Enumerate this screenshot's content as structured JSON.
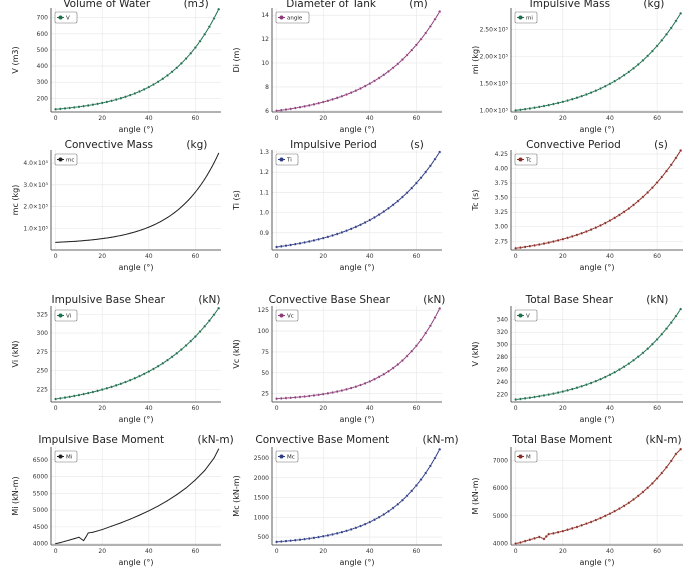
{
  "chart_data": [
    {
      "type": "line",
      "title": "Volume of Water          (m3)",
      "xlabel": "angle (°)",
      "ylabel": "V  (m3)",
      "xlim": [
        -2,
        71
      ],
      "ylim": [
        115,
        760
      ],
      "xticks": [
        0,
        20,
        40,
        60
      ],
      "yticks": [
        200,
        300,
        400,
        500,
        600,
        700
      ],
      "ytick_labels": [
        "200",
        "300",
        "400",
        "500",
        "600",
        "700"
      ],
      "color": "#1e6f4d",
      "legend_position": "top-left",
      "series": [
        {
          "name": "V",
          "start": 132,
          "end": 752,
          "step": 2,
          "curve": "exp",
          "shape": 3.2
        }
      ]
    },
    {
      "type": "line",
      "title": "Diameter of Tank          (m)",
      "xlabel": "angle (°)",
      "ylabel": "Di  (m)",
      "xlim": [
        -2,
        71
      ],
      "ylim": [
        5.9,
        14.6
      ],
      "xticks": [
        0,
        20,
        40,
        60
      ],
      "yticks": [
        6,
        8,
        10,
        12,
        14
      ],
      "ytick_labels": [
        "6",
        "8",
        "10",
        "12",
        "14"
      ],
      "color": "#8e3d7a",
      "legend_position": "top-left",
      "series": [
        {
          "name": "angle",
          "start": 6.0,
          "end": 14.3,
          "step": 2,
          "curve": "exp",
          "shape": 2.6
        }
      ]
    },
    {
      "type": "line",
      "title": "Impulsive Mass          (kg)",
      "xlabel": "angle (°)",
      "ylabel": "mi  (kg)",
      "xlim": [
        -2,
        71
      ],
      "ylim": [
        97000,
        290000
      ],
      "xticks": [
        0,
        20,
        40,
        60
      ],
      "yticks": [
        100000,
        150000,
        200000,
        250000
      ],
      "ytick_labels": [
        "1.00×10⁵",
        "1.50×10⁵",
        "2.00×10⁵",
        "2.50×10⁵"
      ],
      "color": "#1e6f4d",
      "legend_position": "top-left",
      "series": [
        {
          "name": "mi",
          "start": 100000,
          "end": 280000,
          "step": 2,
          "curve": "exp",
          "shape": 2.6
        }
      ]
    },
    {
      "type": "line",
      "title": "Convective Mass          (kg)",
      "xlabel": "angle (°)",
      "ylabel": "mc  (kg)",
      "xlim": [
        -2,
        71
      ],
      "ylim": [
        0,
        460000
      ],
      "xticks": [
        0,
        20,
        40,
        60
      ],
      "yticks": [
        100000,
        200000,
        300000,
        400000
      ],
      "ytick_labels": [
        "1.0×10⁵",
        "2.0×10⁵",
        "3.0×10⁵",
        "4.0×10⁵"
      ],
      "color": "#222222",
      "legend_position": "top-left",
      "line_only": true,
      "series": [
        {
          "name": "mc",
          "start": 35000,
          "end": 445000,
          "step": 1,
          "curve": "exp",
          "shape": 3.9
        }
      ]
    },
    {
      "type": "line",
      "title": "Impulsive Period          (s)",
      "xlabel": "angle (°)",
      "ylabel": "Ti  (s)",
      "xlim": [
        -2,
        71
      ],
      "ylim": [
        0.815,
        1.31
      ],
      "xticks": [
        0,
        20,
        40,
        60
      ],
      "yticks": [
        0.9,
        1.0,
        1.1,
        1.2,
        1.3
      ],
      "ytick_labels": [
        "0.9",
        "1.0",
        "1.1",
        "1.2",
        "1.3"
      ],
      "color": "#2f3d86",
      "legend_position": "top-left",
      "series": [
        {
          "name": "Ti",
          "start": 0.83,
          "end": 1.3,
          "step": 2,
          "curve": "exp",
          "shape": 2.5
        }
      ]
    },
    {
      "type": "line",
      "title": "Convective Period          (s)",
      "xlabel": "angle (°)",
      "ylabel": "Tc  (s)",
      "xlim": [
        -2,
        71
      ],
      "ylim": [
        2.6,
        4.32
      ],
      "xticks": [
        0,
        20,
        40,
        60
      ],
      "yticks": [
        2.75,
        3.0,
        3.25,
        3.5,
        3.75,
        4.0,
        4.25
      ],
      "ytick_labels": [
        "2.75",
        "3.00",
        "3.25",
        "3.50",
        "3.75",
        "4.00",
        "4.25"
      ],
      "color": "#8b2d24",
      "legend_position": "top-left",
      "series": [
        {
          "name": "Tc",
          "start": 2.63,
          "end": 4.31,
          "step": 2,
          "curve": "exp",
          "shape": 2.5
        }
      ]
    },
    {
      "type": "line",
      "title": "Impulsive Base Shear          (kN)",
      "xlabel": "angle (°)",
      "ylabel": "Vi  (kN)",
      "xlim": [
        -2,
        71
      ],
      "ylim": [
        208,
        336
      ],
      "xticks": [
        0,
        20,
        40,
        60
      ],
      "yticks": [
        225,
        250,
        275,
        300,
        325
      ],
      "ytick_labels": [
        "225",
        "250",
        "275",
        "300",
        "325"
      ],
      "color": "#1e6f4d",
      "legend_position": "top-left",
      "series": [
        {
          "name": "Vi",
          "start": 212,
          "end": 333,
          "step": 2,
          "curve": "exp",
          "shape": 2.3
        }
      ]
    },
    {
      "type": "line",
      "title": "Convective Base Shear          (kN)",
      "xlabel": "angle (°)",
      "ylabel": "Vc  (kN)",
      "xlim": [
        -2,
        71
      ],
      "ylim": [
        15,
        130
      ],
      "xticks": [
        0,
        20,
        40,
        60
      ],
      "yticks": [
        25,
        50,
        75,
        100,
        125
      ],
      "ytick_labels": [
        "25",
        "50",
        "75",
        "100",
        "125"
      ],
      "color": "#8e3d7a",
      "legend_position": "top-left",
      "series": [
        {
          "name": "Vc",
          "start": 19,
          "end": 127,
          "step": 2,
          "curve": "exp",
          "shape": 3.6
        }
      ]
    },
    {
      "type": "line",
      "title": "Total Base Shear          (kN)",
      "xlabel": "angle (°)",
      "ylabel": "V  (kN)",
      "xlim": [
        -2,
        71
      ],
      "ylim": [
        208,
        362
      ],
      "xticks": [
        0,
        20,
        40,
        60
      ],
      "yticks": [
        220,
        240,
        260,
        280,
        300,
        320,
        340
      ],
      "ytick_labels": [
        "220",
        "240",
        "260",
        "280",
        "300",
        "320",
        "340"
      ],
      "color": "#1e6f4d",
      "legend_position": "top-left",
      "series": [
        {
          "name": "V",
          "start": 212,
          "end": 357,
          "step": 2,
          "curve": "exp",
          "shape": 2.6
        }
      ]
    },
    {
      "type": "line",
      "title": "Impulsive Base Moment          (kN-m)",
      "xlabel": "angle (°)",
      "ylabel": "Mi  (kN-m)",
      "xlim": [
        -2,
        71
      ],
      "ylim": [
        3960,
        6880
      ],
      "xticks": [
        0,
        20,
        40,
        60
      ],
      "yticks": [
        4000,
        4500,
        5000,
        5500,
        6000,
        6500
      ],
      "ytick_labels": [
        "4000",
        "4500",
        "5000",
        "5500",
        "6000",
        "6500"
      ],
      "color": "#222222",
      "legend_position": "top-left",
      "line_only": true,
      "series": [
        {
          "name": "Mi",
          "x": [
            0,
            2,
            4,
            6,
            8,
            10,
            12,
            13,
            14,
            16,
            20,
            24,
            28,
            32,
            36,
            40,
            44,
            48,
            52,
            56,
            60,
            64,
            68,
            70
          ],
          "y": [
            4000,
            4030,
            4070,
            4110,
            4150,
            4190,
            4090,
            4200,
            4320,
            4340,
            4420,
            4520,
            4620,
            4730,
            4850,
            4980,
            5120,
            5280,
            5460,
            5660,
            5900,
            6180,
            6550,
            6820
          ]
        }
      ]
    },
    {
      "type": "line",
      "title": "Convective Base Moment          (kN-m)",
      "xlabel": "angle (°)",
      "ylabel": "Mc  (kN-m)",
      "xlim": [
        -2,
        71
      ],
      "ylim": [
        300,
        2780
      ],
      "xticks": [
        0,
        20,
        40,
        60
      ],
      "yticks": [
        500,
        1000,
        1500,
        2000,
        2500
      ],
      "ytick_labels": [
        "500",
        "1000",
        "1500",
        "2000",
        "2500"
      ],
      "color": "#2f3d86",
      "legend_position": "top-left",
      "series": [
        {
          "name": "Mc",
          "start": 380,
          "end": 2720,
          "step": 2,
          "curve": "exp",
          "shape": 3.3
        }
      ]
    },
    {
      "type": "line",
      "title": "Total Base Moment          (kN-m)",
      "xlabel": "angle (°)",
      "ylabel": "M  (kN-m)",
      "xlim": [
        -2,
        71
      ],
      "ylim": [
        3950,
        7480
      ],
      "xticks": [
        0,
        20,
        40,
        60
      ],
      "yticks": [
        4000,
        5000,
        6000,
        7000
      ],
      "ytick_labels": [
        "4000",
        "5000",
        "6000",
        "7000"
      ],
      "color": "#8b2d24",
      "legend_position": "top-left",
      "series": [
        {
          "name": "M",
          "x": [
            0,
            2,
            4,
            6,
            8,
            10,
            12,
            13,
            14,
            16,
            18,
            20,
            22,
            24,
            26,
            28,
            30,
            32,
            34,
            36,
            38,
            40,
            42,
            44,
            46,
            48,
            50,
            52,
            54,
            56,
            58,
            60,
            62,
            64,
            66,
            68,
            70
          ],
          "y": [
            4000,
            4040,
            4090,
            4140,
            4190,
            4240,
            4170,
            4260,
            4340,
            4370,
            4410,
            4450,
            4500,
            4550,
            4600,
            4660,
            4720,
            4780,
            4850,
            4920,
            5000,
            5080,
            5170,
            5260,
            5360,
            5470,
            5590,
            5720,
            5860,
            6010,
            6170,
            6350,
            6540,
            6750,
            6980,
            7230,
            7400
          ]
        }
      ]
    }
  ]
}
